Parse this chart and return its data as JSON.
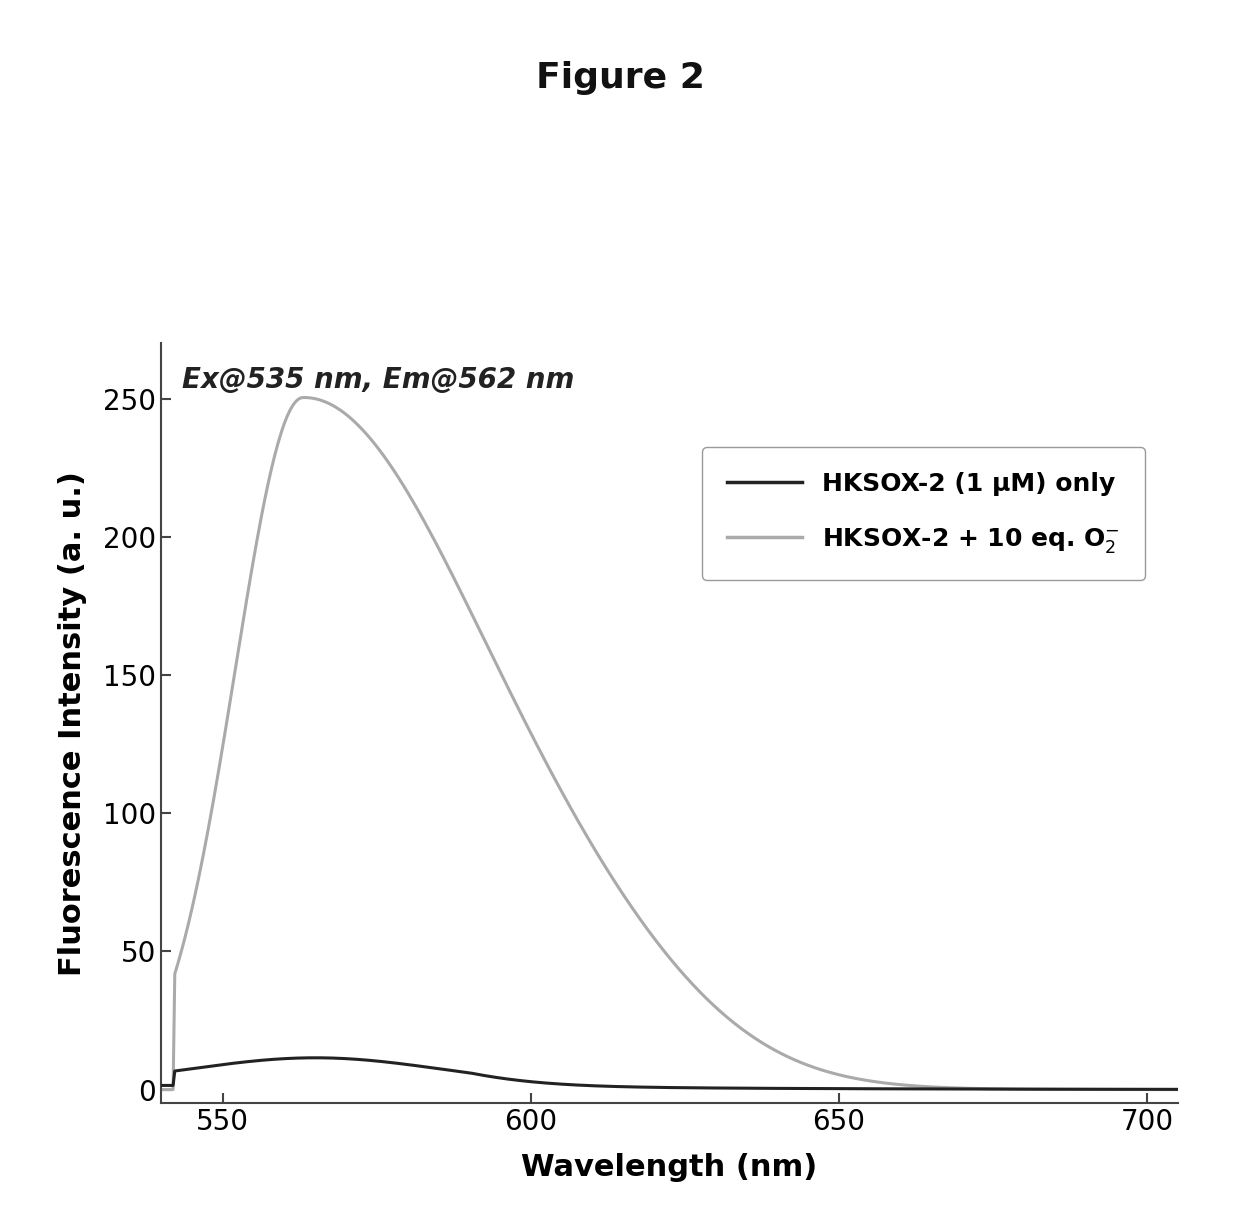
{
  "title": "Figure 2",
  "xlabel": "Wavelength (nm)",
  "ylabel": "Fluorescence Intensity (a. u.)",
  "annotation": "Ex@535 nm, Em@562 nm",
  "xlim": [
    540,
    705
  ],
  "ylim": [
    -5,
    270
  ],
  "yticks": [
    0,
    50,
    100,
    150,
    200,
    250
  ],
  "xticks": [
    550,
    600,
    650,
    700
  ],
  "legend_line1": "HKSOX-2 (1 μM) only",
  "line1_color": "#222222",
  "line2_color": "#aaaaaa",
  "background_color": "#ffffff",
  "title_fontsize": 26,
  "label_fontsize": 22,
  "tick_fontsize": 20,
  "annotation_fontsize": 20,
  "legend_fontsize": 18
}
